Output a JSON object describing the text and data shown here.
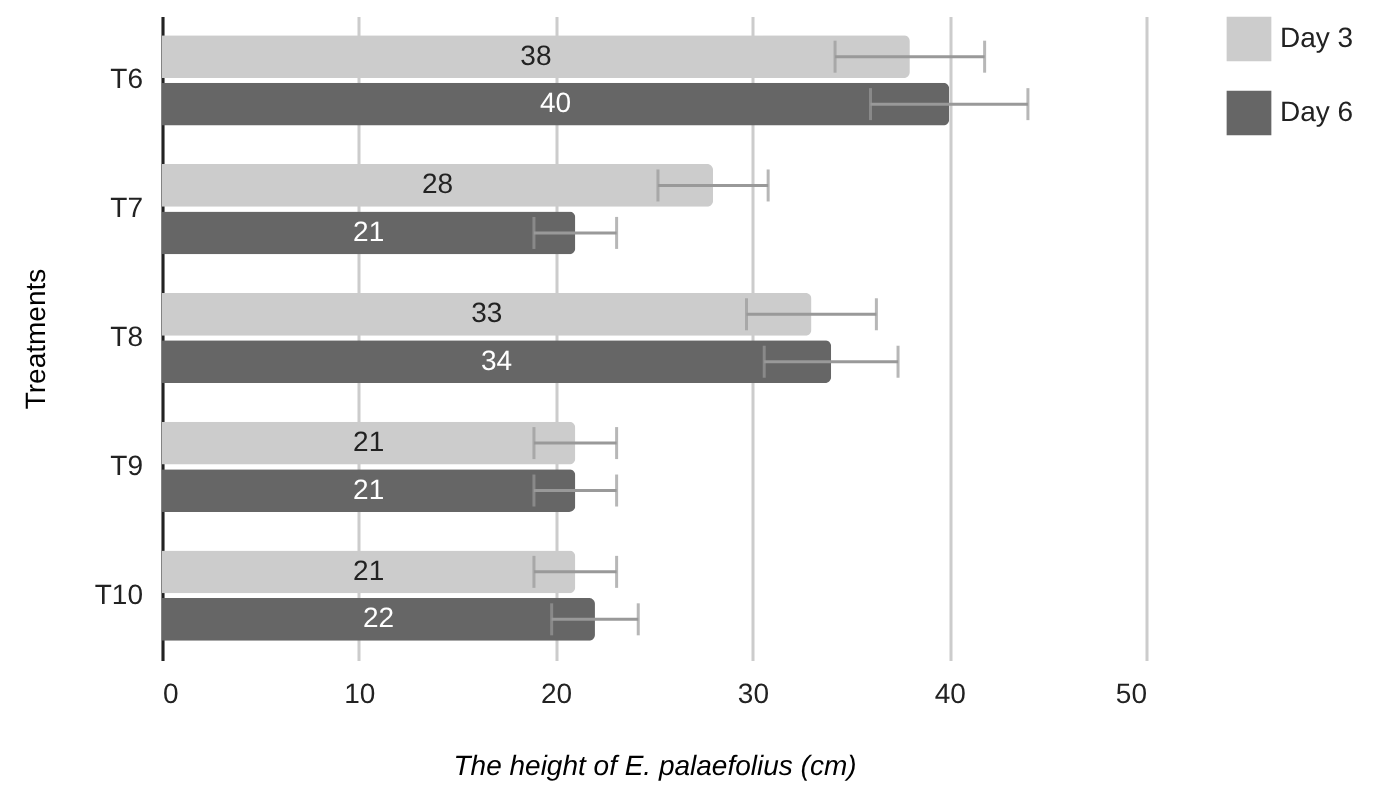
{
  "chart_data": {
    "type": "bar",
    "orientation": "horizontal",
    "xlabel": "The height of E. palaefolius (cm)",
    "ylabel": "Treatments",
    "categories": [
      "T6",
      "T7",
      "T8",
      "T9",
      "T10"
    ],
    "series": [
      {
        "name": "Day 3",
        "color": "#cccccc",
        "values": [
          38,
          28,
          33,
          21,
          21
        ],
        "errors": [
          3.8,
          2.8,
          3.3,
          2.1,
          2.1
        ]
      },
      {
        "name": "Day 6",
        "color": "#666666",
        "values": [
          40,
          21,
          34,
          21,
          22
        ],
        "errors": [
          4,
          2.1,
          3.4,
          2.1,
          2.2
        ]
      }
    ],
    "xlim": [
      0,
      50
    ],
    "xticks": [
      0,
      10,
      20,
      30,
      40,
      50
    ],
    "grid": "x",
    "legend": "top right",
    "data_labels": true
  }
}
